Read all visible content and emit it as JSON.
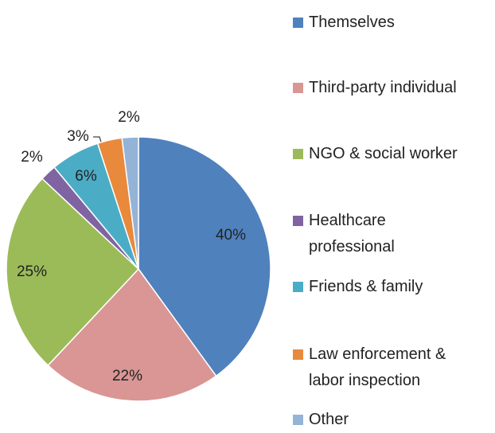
{
  "chart_data": {
    "type": "pie",
    "categories": [
      "Themselves",
      "Third-party individual",
      "NGO & social worker",
      "Healthcare\nprofessional",
      "Friends & family",
      "Law enforcement &\nlabor inspection",
      "Other"
    ],
    "values": [
      40,
      22,
      25,
      2,
      6,
      3,
      2
    ],
    "value_labels": [
      "40%",
      "22%",
      "25%",
      "2%",
      "6%",
      "3%",
      "2%"
    ],
    "colors": [
      "#4f81bd",
      "#d99694",
      "#9bbb59",
      "#8064a2",
      "#4bacc6",
      "#e8893c",
      "#95b3d7"
    ]
  }
}
